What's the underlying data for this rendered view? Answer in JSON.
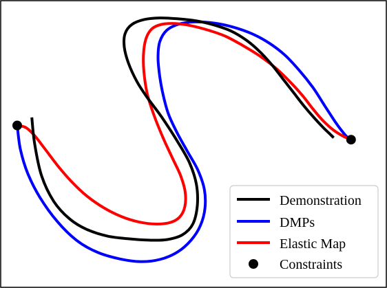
{
  "chart_data": {
    "type": "line",
    "title": "",
    "xlabel": "",
    "ylabel": "",
    "grid": false,
    "axes_ticks": false,
    "legend_position": "bottom-right",
    "xlim": [
      0,
      100
    ],
    "ylim": [
      0,
      100
    ],
    "series": [
      {
        "name": "Demonstration",
        "color": "#000000",
        "points": [
          [
            4.2,
            59.8
          ],
          [
            5.0,
            50.0
          ],
          [
            7.0,
            38.0
          ],
          [
            10.5,
            28.5
          ],
          [
            15.0,
            22.0
          ],
          [
            20.0,
            18.0
          ],
          [
            26.0,
            15.5
          ],
          [
            32.0,
            14.5
          ],
          [
            38.0,
            14.0
          ],
          [
            43.0,
            14.2
          ],
          [
            47.5,
            16.0
          ],
          [
            50.5,
            20.0
          ],
          [
            51.8,
            27.0
          ],
          [
            51.5,
            35.0
          ],
          [
            49.5,
            43.0
          ],
          [
            46.0,
            51.0
          ],
          [
            41.5,
            60.0
          ],
          [
            37.5,
            67.0
          ],
          [
            34.5,
            73.0
          ],
          [
            32.0,
            80.0
          ],
          [
            30.8,
            86.0
          ],
          [
            31.0,
            91.0
          ],
          [
            33.0,
            94.5
          ],
          [
            36.5,
            96.3
          ],
          [
            41.0,
            96.9
          ],
          [
            46.0,
            96.6
          ],
          [
            51.5,
            95.8
          ],
          [
            56.5,
            94.3
          ],
          [
            61.5,
            92.0
          ],
          [
            66.0,
            88.5
          ],
          [
            70.0,
            84.0
          ],
          [
            73.5,
            79.0
          ],
          [
            76.5,
            74.0
          ],
          [
            79.5,
            69.0
          ],
          [
            82.5,
            64.0
          ],
          [
            85.5,
            59.5
          ],
          [
            88.0,
            56.0
          ],
          [
            90.0,
            53.5
          ],
          [
            91.0,
            52.2
          ]
        ]
      },
      {
        "name": "DMPs",
        "color": "#0000ff",
        "points": [
          [
            0.0,
            56.8
          ],
          [
            0.9,
            48.0
          ],
          [
            3.0,
            39.0
          ],
          [
            6.5,
            30.0
          ],
          [
            11.5,
            21.0
          ],
          [
            17.0,
            14.0
          ],
          [
            23.0,
            9.5
          ],
          [
            29.5,
            7.0
          ],
          [
            35.5,
            6.0
          ],
          [
            41.0,
            6.8
          ],
          [
            46.0,
            9.5
          ],
          [
            50.0,
            14.0
          ],
          [
            52.7,
            19.5
          ],
          [
            54.0,
            26.0
          ],
          [
            53.8,
            33.0
          ],
          [
            52.0,
            40.0
          ],
          [
            49.0,
            47.0
          ],
          [
            46.0,
            54.0
          ],
          [
            43.5,
            61.0
          ],
          [
            42.0,
            68.0
          ],
          [
            41.0,
            75.0
          ],
          [
            40.5,
            82.0
          ],
          [
            41.0,
            88.0
          ],
          [
            43.0,
            92.3
          ],
          [
            46.5,
            94.6
          ],
          [
            51.0,
            95.4
          ],
          [
            56.5,
            95.0
          ],
          [
            62.0,
            93.5
          ],
          [
            67.5,
            91.0
          ],
          [
            72.5,
            87.5
          ],
          [
            77.0,
            83.0
          ],
          [
            81.0,
            77.5
          ],
          [
            85.0,
            71.0
          ],
          [
            88.5,
            64.0
          ],
          [
            91.5,
            58.0
          ],
          [
            93.5,
            54.5
          ],
          [
            95.0,
            52.3
          ],
          [
            96.0,
            51.5
          ]
        ]
      },
      {
        "name": "Elastic Map",
        "color": "#ff0000",
        "points": [
          [
            0.0,
            56.8
          ],
          [
            2.5,
            56.0
          ],
          [
            5.0,
            53.0
          ],
          [
            8.0,
            48.0
          ],
          [
            11.5,
            42.0
          ],
          [
            15.5,
            36.0
          ],
          [
            20.0,
            30.5
          ],
          [
            25.0,
            26.0
          ],
          [
            30.0,
            22.8
          ],
          [
            35.0,
            20.8
          ],
          [
            40.0,
            20.0
          ],
          [
            44.0,
            20.6
          ],
          [
            46.7,
            22.6
          ],
          [
            48.2,
            26.5
          ],
          [
            48.3,
            32.0
          ],
          [
            47.0,
            38.0
          ],
          [
            44.5,
            45.0
          ],
          [
            42.0,
            52.0
          ],
          [
            39.5,
            60.0
          ],
          [
            37.5,
            68.0
          ],
          [
            36.5,
            76.0
          ],
          [
            36.3,
            83.0
          ],
          [
            37.0,
            89.0
          ],
          [
            38.7,
            92.8
          ],
          [
            41.5,
            94.5
          ],
          [
            45.5,
            94.8
          ],
          [
            50.0,
            94.0
          ],
          [
            55.0,
            92.3
          ],
          [
            60.0,
            90.0
          ],
          [
            65.0,
            86.5
          ],
          [
            70.0,
            82.5
          ],
          [
            74.5,
            78.0
          ],
          [
            78.5,
            73.0
          ],
          [
            82.0,
            68.0
          ],
          [
            85.0,
            63.0
          ],
          [
            88.0,
            58.5
          ],
          [
            91.0,
            55.0
          ],
          [
            94.0,
            52.6
          ],
          [
            96.0,
            51.5
          ]
        ]
      }
    ],
    "constraints": {
      "name": "Constraints",
      "color": "#000000",
      "points": [
        [
          0.0,
          56.8
        ],
        [
          96.0,
          51.5
        ]
      ]
    }
  }
}
